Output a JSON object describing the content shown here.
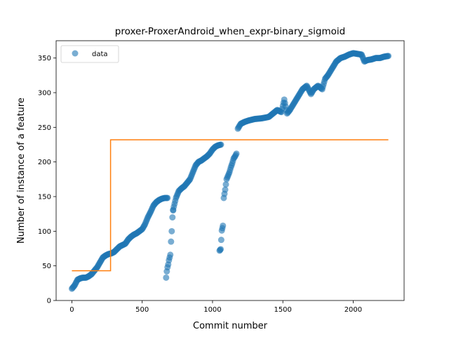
{
  "chart_data": {
    "type": "scatter",
    "title": "proxer-ProxerAndroid_when_expr-binary_sigmoid",
    "xlabel": "Commit number",
    "ylabel": "Number of instance of a feature",
    "xlim": [
      -112,
      2362
    ],
    "ylim": [
      0,
      375
    ],
    "xticks": [
      0,
      500,
      1000,
      1500,
      2000
    ],
    "yticks": [
      0,
      50,
      100,
      150,
      200,
      250,
      300,
      350
    ],
    "grid": false,
    "legend_position": "top-left",
    "colors": {
      "data": "#1f77b4",
      "fit": "#ff7f0e"
    },
    "series": [
      {
        "name": "data",
        "kind": "scatter",
        "segments": [
          {
            "x": [
              0,
              20,
              40,
              60,
              80,
              100,
              120,
              140,
              160,
              180,
              200,
              220,
              240,
              260,
              280,
              300,
              320,
              340,
              360,
              380,
              400,
              420,
              440,
              460,
              480,
              500,
              520,
              540,
              560,
              580,
              600,
              620,
              640,
              660,
              680
            ],
            "y": [
              17,
              22,
              30,
              32,
              33,
              33,
              35,
              38,
              43,
              48,
              55,
              62,
              65,
              67,
              68,
              70,
              74,
              78,
              80,
              82,
              88,
              92,
              95,
              97,
              100,
              103,
              110,
              120,
              128,
              137,
              142,
              145,
              147,
              148,
              148
            ]
          },
          {
            "x": [
              670,
              675,
              680,
              685,
              690,
              695,
              700,
              705,
              710,
              715,
              720
            ],
            "y": [
              33,
              42,
              48,
              52,
              58,
              62,
              66,
              85,
              100,
              120,
              130
            ]
          },
          {
            "x": [
              720,
              740,
              760,
              780,
              800,
              820,
              840,
              860,
              880,
              900,
              920,
              940,
              960,
              980,
              1000,
              1020,
              1040,
              1060
            ],
            "y": [
              131,
              148,
              158,
              162,
              165,
              170,
              175,
              185,
              195,
              200,
              202,
              205,
              208,
              212,
              218,
              222,
              224,
              225
            ]
          },
          {
            "x": [
              1050,
              1058,
              1066,
              1074,
              1080,
              1090,
              1100,
              1110,
              1120,
              1130,
              1140,
              1150,
              1160,
              1170
            ],
            "y": [
              72,
              74,
              101,
              108,
              148,
              160,
              175,
              180,
              185,
              192,
              198,
              205,
              208,
              212
            ]
          },
          {
            "x": [
              1180,
              1200,
              1230,
              1260,
              1300,
              1350,
              1400,
              1430,
              1460,
              1490,
              1510,
              1530,
              1550,
              1580,
              1610,
              1640,
              1670,
              1700,
              1720,
              1750,
              1780,
              1800,
              1820,
              1850,
              1880,
              1910,
              1940,
              1970,
              2000,
              2030,
              2060,
              2080,
              2100,
              2130,
              2160,
              2190,
              2220,
              2250
            ],
            "y": [
              248,
              255,
              258,
              260,
              262,
              263,
              265,
              270,
              275,
              272,
              290,
              270,
              275,
              285,
              295,
              305,
              310,
              298,
              305,
              310,
              305,
              320,
              325,
              335,
              345,
              350,
              352,
              355,
              357,
              356,
              355,
              345,
              347,
              348,
              350,
              350,
              352,
              353
            ]
          }
        ]
      },
      {
        "name": "",
        "kind": "step-line",
        "x": [
          0,
          275,
          275,
          2250
        ],
        "y": [
          43,
          43,
          232,
          232
        ]
      }
    ]
  }
}
